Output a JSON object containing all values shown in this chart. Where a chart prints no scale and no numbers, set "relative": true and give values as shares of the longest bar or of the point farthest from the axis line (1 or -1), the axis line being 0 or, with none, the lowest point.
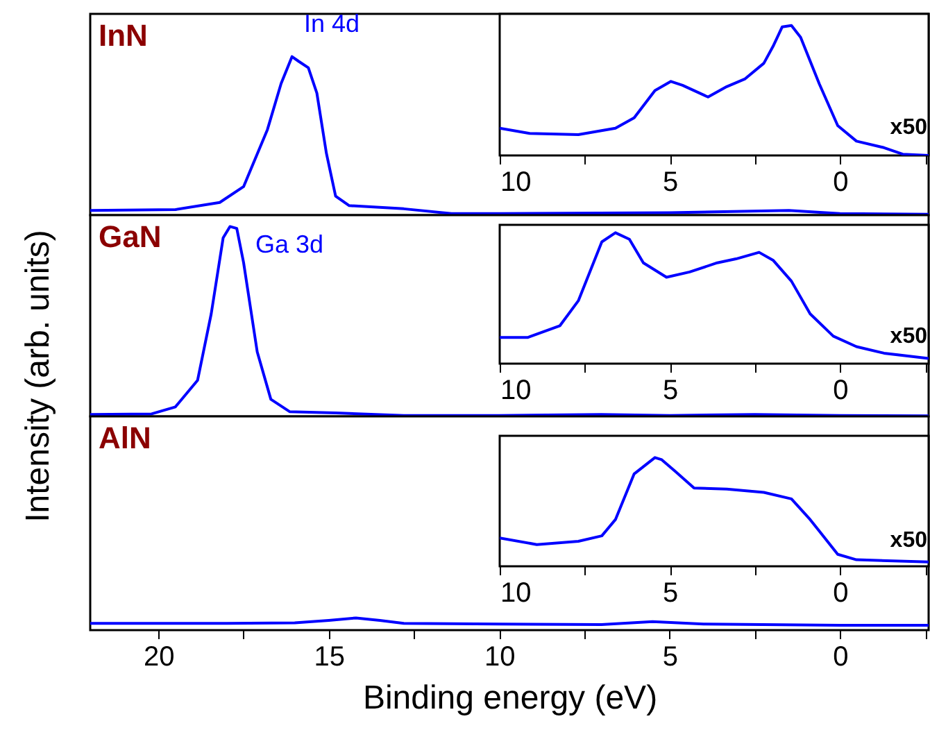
{
  "chart_data": [
    {
      "type": "line",
      "title": "InN",
      "relative": true,
      "ylim": [
        0,
        1.27
      ],
      "xlim": [
        22,
        -2.6
      ],
      "xticks": [
        20,
        {
          "value": 17.5,
          "label": null
        },
        15,
        {
          "value": 12.5,
          "label": null
        },
        10,
        {
          "value": 7.5,
          "label": null
        },
        5,
        {
          "value": 2.5,
          "label": null
        },
        0,
        {
          "value": -2.5,
          "label": null
        }
      ],
      "tick_labels": false,
      "x": [
        22,
        19.5,
        18.2,
        17.5,
        16.8,
        16.4,
        16.08,
        15.88,
        15.6,
        15.35,
        15.07,
        14.8,
        14.4,
        12.8,
        11.4,
        10,
        5,
        1.5,
        0,
        -2.6
      ],
      "series": [
        {
          "color": "#0000ff",
          "values": [
            0.03,
            0.035,
            0.08,
            0.18,
            0.54,
            0.83,
            1,
            0.97,
            0.93,
            0.77,
            0.39,
            0.12,
            0.06,
            0.04,
            0.01,
            0.01,
            0.015,
            0.03,
            0.01,
            0.005
          ]
        }
      ],
      "annotations": [
        "In 4d"
      ]
    },
    {
      "type": "line",
      "relative": true,
      "xlim": [
        10,
        -2.6
      ],
      "xticks": [
        10,
        {
          "value": 7.5,
          "label": null
        },
        5,
        {
          "value": 2.5,
          "label": null
        },
        0,
        {
          "value": -2.5,
          "label": null
        }
      ],
      "tick_labels": "x",
      "x": [
        10,
        9.12,
        7.69,
        6.6,
        6.05,
        5.44,
        4.97,
        4.63,
        3.88,
        3.33,
        2.79,
        2.24,
        1.97,
        1.7,
        1.43,
        1.16,
        0.61,
        0.07,
        -0.48,
        -1.29,
        -1.84,
        -2.6
      ],
      "ylim": [
        0,
        1.09
      ],
      "series": [
        {
          "color": "#0000ff",
          "values": [
            0.21,
            0.17,
            0.16,
            0.21,
            0.29,
            0.5,
            0.57,
            0.54,
            0.45,
            0.53,
            0.59,
            0.71,
            0.84,
            0.99,
            1,
            0.91,
            0.55,
            0.23,
            0.11,
            0.06,
            0.01,
            0
          ]
        }
      ],
      "annotations": [
        "x50"
      ]
    },
    {
      "type": "line",
      "title": "GaN",
      "relative": true,
      "ylim": [
        0,
        1.06
      ],
      "ylabel": "Intensity (arb. units)",
      "xlim": [
        22,
        -2.6
      ],
      "xticks": [
        20,
        {
          "value": 17.5,
          "label": null
        },
        15,
        {
          "value": 12.5,
          "label": null
        },
        10,
        {
          "value": 7.5,
          "label": null
        },
        5,
        {
          "value": 2.5,
          "label": null
        },
        0,
        {
          "value": -2.5,
          "label": null
        }
      ],
      "tick_labels": false,
      "x": [
        22,
        20.2,
        19.5,
        18.85,
        18.45,
        18.1,
        17.9,
        17.7,
        17.5,
        17.1,
        16.7,
        16.15,
        14.8,
        12.8,
        10,
        7,
        5,
        2.5,
        0,
        -2.6
      ],
      "series": [
        {
          "color": "#0000ff",
          "values": [
            0.01,
            0.013,
            0.05,
            0.19,
            0.54,
            0.94,
            1,
            0.99,
            0.81,
            0.34,
            0.09,
            0.025,
            0.018,
            0.005,
            0.005,
            0.01,
            0.005,
            0.01,
            0.005,
            0.003
          ]
        }
      ],
      "annotations": [
        "Ga 3d"
      ]
    },
    {
      "type": "line",
      "relative": true,
      "xlim": [
        10,
        -2.6
      ],
      "xticks": [
        10,
        {
          "value": 7.5,
          "label": null
        },
        5,
        {
          "value": 2.5,
          "label": null
        },
        0,
        {
          "value": -2.5,
          "label": null
        }
      ],
      "tick_labels": "x",
      "x": [
        10,
        9.18,
        8.23,
        7.69,
        7.0,
        6.6,
        6.19,
        5.78,
        5.1,
        4.42,
        3.61,
        3.06,
        2.38,
        1.97,
        1.43,
        0.88,
        0.2,
        -0.48,
        -1.29,
        -2.6
      ],
      "ylim": [
        0,
        1.06
      ],
      "series": [
        {
          "color": "#0000ff",
          "values": [
            0.2,
            0.2,
            0.29,
            0.48,
            0.93,
            1,
            0.95,
            0.77,
            0.66,
            0.7,
            0.77,
            0.8,
            0.85,
            0.79,
            0.63,
            0.38,
            0.21,
            0.13,
            0.08,
            0.04
          ]
        }
      ],
      "annotations": [
        "x50"
      ]
    },
    {
      "type": "line",
      "title": "AlN",
      "relative": true,
      "ylim": [
        0,
        17.5
      ],
      "xlabel": "Binding energy (eV)",
      "xlim": [
        22,
        -2.6
      ],
      "xticks": [
        20,
        {
          "value": 17.5,
          "label": null
        },
        15,
        {
          "value": 12.5,
          "label": null
        },
        10,
        {
          "value": 7.5,
          "label": null
        },
        5,
        {
          "value": 2.5,
          "label": null
        },
        0,
        {
          "value": -2.5,
          "label": null
        }
      ],
      "tick_labels": "x",
      "x": [
        22,
        18,
        16,
        15,
        14.2,
        13.5,
        12.8,
        10,
        7,
        5.5,
        4,
        0,
        -2.6
      ],
      "series": [
        {
          "color": "#0000ff",
          "values": [
            0.56,
            0.56,
            0.6,
            0.8,
            1,
            0.8,
            0.56,
            0.5,
            0.45,
            0.7,
            0.5,
            0.4,
            0.4
          ]
        }
      ]
    },
    {
      "type": "line",
      "relative": true,
      "xlim": [
        10,
        -2.6
      ],
      "xticks": [
        10,
        {
          "value": 7.5,
          "label": null
        },
        5,
        {
          "value": 2.5,
          "label": null
        },
        0,
        {
          "value": -2.5,
          "label": null
        }
      ],
      "tick_labels": "x",
      "x": [
        10,
        8.91,
        7.69,
        7.0,
        6.6,
        6.05,
        5.44,
        5.24,
        4.83,
        4.29,
        3.33,
        2.24,
        1.43,
        0.88,
        0.07,
        -0.48,
        -2.6
      ],
      "ylim": [
        0,
        1.2
      ],
      "series": [
        {
          "color": "#0000ff",
          "values": [
            0.26,
            0.2,
            0.23,
            0.28,
            0.43,
            0.85,
            1,
            0.98,
            0.87,
            0.72,
            0.71,
            0.68,
            0.62,
            0.43,
            0.11,
            0.06,
            0.04
          ]
        }
      ],
      "annotations": [
        "x50"
      ]
    }
  ]
}
